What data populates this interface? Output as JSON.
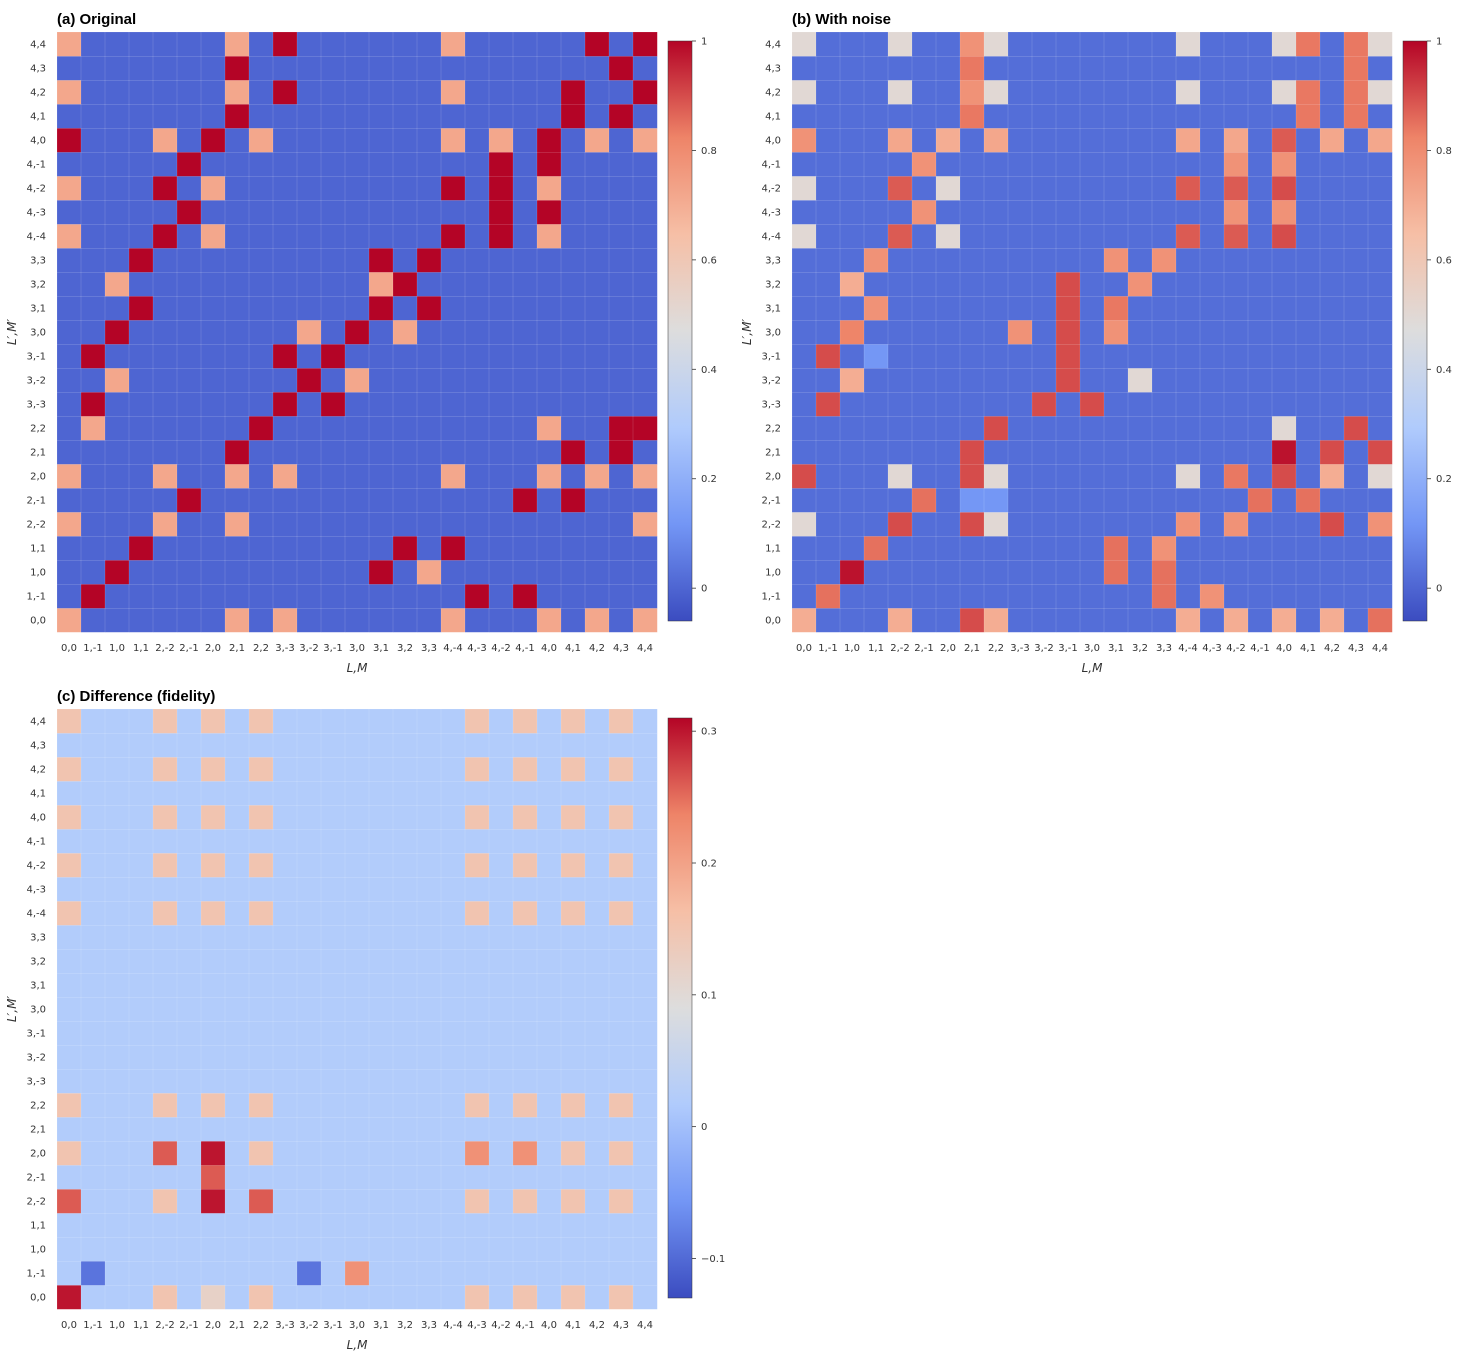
{
  "colorscale": {
    "name": "coolwarm",
    "stops": [
      "#3b4cc0",
      "#7396f5",
      "#b0cbfc",
      "#dddddd",
      "#f6bfa6",
      "#ee8468",
      "#b40426"
    ]
  },
  "chart_data": [
    {
      "type": "heatmap",
      "title": "(a) Original",
      "xlabel": "L,M",
      "ylabel": "L′,M′",
      "labels": [
        "0,0",
        "1,-1",
        "1,0",
        "1,1",
        "2,-2",
        "2,-1",
        "2,0",
        "2,1",
        "2,2",
        "3,-3",
        "3,-2",
        "3,-1",
        "3,0",
        "3,1",
        "3,2",
        "3,3",
        "4,-4",
        "4,-3",
        "4,-2",
        "4,-1",
        "4,0",
        "4,1",
        "4,2",
        "4,3",
        "4,4"
      ],
      "zlim": [
        -0.06,
        1
      ],
      "colorbar_ticks": [
        0,
        0.2,
        0.4,
        0.6,
        0.8,
        1
      ],
      "colorbar_tick_labels": [
        "0",
        "0.2",
        "0.4",
        "0.6",
        "0.8",
        "1"
      ]
    },
    {
      "type": "heatmap",
      "title": "(b) With noise",
      "xlabel": "L,M",
      "ylabel": "L′,M′",
      "labels": [
        "0,0",
        "1,-1",
        "1,0",
        "1,1",
        "2,-2",
        "2,-1",
        "2,0",
        "2,1",
        "2,2",
        "3,-3",
        "3,-2",
        "3,-1",
        "3,0",
        "3,1",
        "3,2",
        "3,3",
        "4,-4",
        "4,-3",
        "4,-2",
        "4,-1",
        "4,0",
        "4,1",
        "4,2",
        "4,3",
        "4,4"
      ],
      "zlim": [
        -0.06,
        1
      ],
      "colorbar_ticks": [
        0,
        0.2,
        0.4,
        0.6,
        0.8,
        1
      ],
      "colorbar_tick_labels": [
        "0",
        "0.2",
        "0.4",
        "0.6",
        "0.8",
        "1"
      ]
    },
    {
      "type": "heatmap",
      "title": "(c) Difference (fidelity)",
      "xlabel": "L,M",
      "ylabel": "L′,M′",
      "labels": [
        "0,0",
        "1,-1",
        "1,0",
        "1,1",
        "2,-2",
        "2,-1",
        "2,0",
        "2,1",
        "2,2",
        "3,-3",
        "3,-2",
        "3,-1",
        "3,0",
        "3,1",
        "3,2",
        "3,3",
        "4,-4",
        "4,-3",
        "4,-2",
        "4,-1",
        "4,0",
        "4,1",
        "4,2",
        "4,3",
        "4,4"
      ],
      "zlim": [
        -0.13,
        0.31
      ],
      "colorbar_ticks": [
        -0.1,
        0,
        0.1,
        0.2,
        0.3
      ],
      "colorbar_tick_labels": [
        "−0.1",
        "0",
        "0.1",
        "0.2",
        "0.3"
      ]
    }
  ],
  "matrices": {
    "original_rows": [
      "a000000a0a000000a000a0a0a",
      "0f000000000000000f0f00000",
      "00f0000000000f0a000000000",
      "000f0000000000f0f00000000",
      "a000a00a0000000000000000a",
      "00000f0000000000000f0f000",
      "a000a00a0a000000a000a0a0a",
      "0000000f0000000000000f0f0",
      "0a000000f00000000000a00ff",
      "0f0000000f0f0000000000000",
      "00a0000000f0a000000000000",
      "0f0000000f0f0000000000000",
      "00f0000000a0f0a0000000000",
      "000f000000000f0f000000000",
      "00a0000000000af0000000000",
      "000f000000000f0f000000000",
      "a000f0a000000000f0f0a0000",
      "00000f000000000000f0f0000",
      "a000f0a000000000f0f0a0000",
      "00000f000000000000f0f0000",
      "f000a0f0a0000000a0a0f0a0a",
      "0000000f0000000000000f0f0",
      "a000000a0f000000a0000f00f",
      "0000000f000000000000000f0",
      "a000000a0f000000a00000f0f"
    ],
    "noisy_rows": [
      "6000600a6000000060606060e6",
      "0e0000000000000e0c0000000",
      "00f0000000000e0e000000000",
      "000e000000000e0c000000000",
      "5000a00a50000000c0c000a0c",
      "00000e0220000000000e0e000",
      "a000500a5000000050b0a06050",
      "0000000a000000000000f0a0a",
      "00000000a00000000000500a0",
      "0a00000000a0a000000000000",
      "00600000000a0050000000000",
      "0a020000000a000000000000",
      "00d000000c0a0c00000000000",
      "000c0000000a0b00000000000",
      "00600000000a00c0000000000",
      "000c000000000c0c000000000",
      "50009050000000009090a0000",
      "00000c000000000000c0c0000",
      "50009050000000009090a0000",
      "00000c000000000000c0c0000",
      "c000706070000000707090707",
      "0000000b0000000000000b0b0",
      "5000500c5000000050005b0b5",
      "0000000b000000000000000b0",
      "5000500c5000000050005b0b5"
    ],
    "difference_rows": [
      "w222r2x2r22222222r2r2r2r2r",
      "2q22222222q2s22222222222222",
      "22222222222222222222222222",
      "2222222222222222222222222",
      "v222r2w2v22222222r2r2r2r2r",
      "222222v22222222222222222222",
      "r222v2w2r22222222s2s2r2r2s",
      "22222222222222222222222222",
      "r222r2r2r22222222r2r2r2r2r",
      "22222222222222222222222222",
      "22222222222222222222222222",
      "22222222222222222222222222",
      "22222222222222222222222222",
      "22222222222222222222222222",
      "22222222222222222222222222",
      "22222222222222222222222222",
      "r222r2r2r22222222r2r2r2r2r",
      "22222222222222222222222222",
      "r222r2r2r22222222r2r2r2r2r",
      "22222222222222222222222222",
      "r222r2r2r22222222r2r2r2r2r",
      "22222222222222222222222222",
      "r222r2r2r22222222r2r2r2r2r",
      "22222222222222222222222222",
      "r222r2r2r22222222r2r2r2r2r"
    ]
  }
}
